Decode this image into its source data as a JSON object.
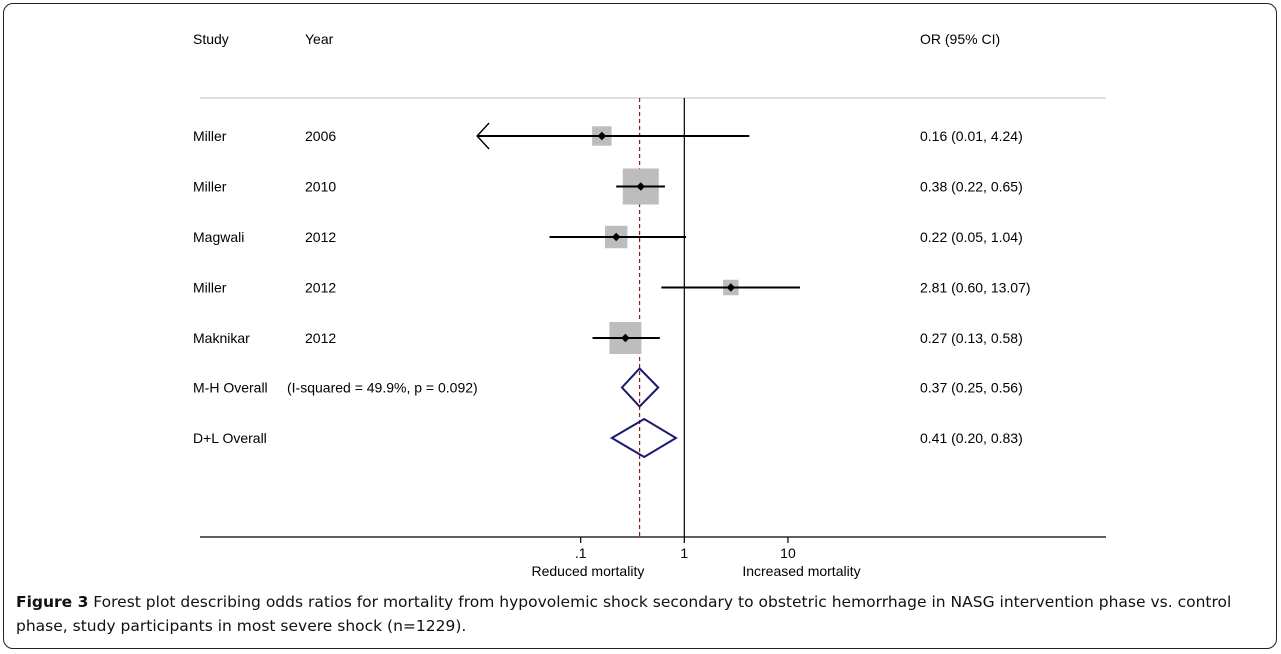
{
  "chart_data": {
    "type": "forest",
    "x_scale": "log",
    "headers": {
      "study": "Study",
      "year": "Year",
      "or": "OR (95% CI)"
    },
    "studies": [
      {
        "study": "Miller",
        "year": "2006",
        "or": 0.16,
        "lo": 0.01,
        "hi": 4.24,
        "weight": 0.2,
        "label": "0.16 (0.01, 4.24)",
        "lower_arrow": true
      },
      {
        "study": "Miller",
        "year": "2010",
        "or": 0.38,
        "lo": 0.22,
        "hi": 0.65,
        "weight": 1.0,
        "label": "0.38 (0.22, 0.65)"
      },
      {
        "study": "Magwali",
        "year": "2012",
        "or": 0.22,
        "lo": 0.05,
        "hi": 1.04,
        "weight": 0.3,
        "label": "0.22 (0.05, 1.04)"
      },
      {
        "study": "Miller",
        "year": "2012",
        "or": 2.81,
        "lo": 0.6,
        "hi": 13.07,
        "weight": 0.1,
        "label": "2.81 (0.60, 13.07)"
      },
      {
        "study": "Maknikar",
        "year": "2012",
        "or": 0.27,
        "lo": 0.13,
        "hi": 0.58,
        "weight": 0.75,
        "label": "0.27 (0.13, 0.58)"
      }
    ],
    "overall": [
      {
        "study": "M-H Overall",
        "note": "(I-squared = 49.9%, p = 0.092)",
        "or": 0.37,
        "lo": 0.25,
        "hi": 0.56,
        "label": "0.37 (0.25, 0.56)"
      },
      {
        "study": "D+L Overall",
        "note": "",
        "or": 0.41,
        "lo": 0.2,
        "hi": 0.83,
        "label": "0.41 (0.20, 0.83)"
      }
    ],
    "reference_line": 1,
    "pooled_line": 0.37,
    "x_ticks": [
      {
        "value": 0.1,
        "label": ".1"
      },
      {
        "value": 1,
        "label": "1"
      },
      {
        "value": 10,
        "label": "10"
      }
    ],
    "x_range": [
      0.0064,
      150
    ],
    "favours": {
      "left": "Reduced mortality",
      "right": "Increased mortality"
    },
    "colors": {
      "diamond": "#1a1a6e",
      "pooled_line": "#8b1a1a",
      "box": "#bdbdbd",
      "ci": "#000000"
    }
  },
  "caption": {
    "label": "Figure 3",
    "text": " Forest plot describing odds ratios for mortality from hypovolemic shock secondary to obstetric hemorrhage in NASG intervention phase vs. control phase, study participants in most severe shock (n=1229)."
  }
}
